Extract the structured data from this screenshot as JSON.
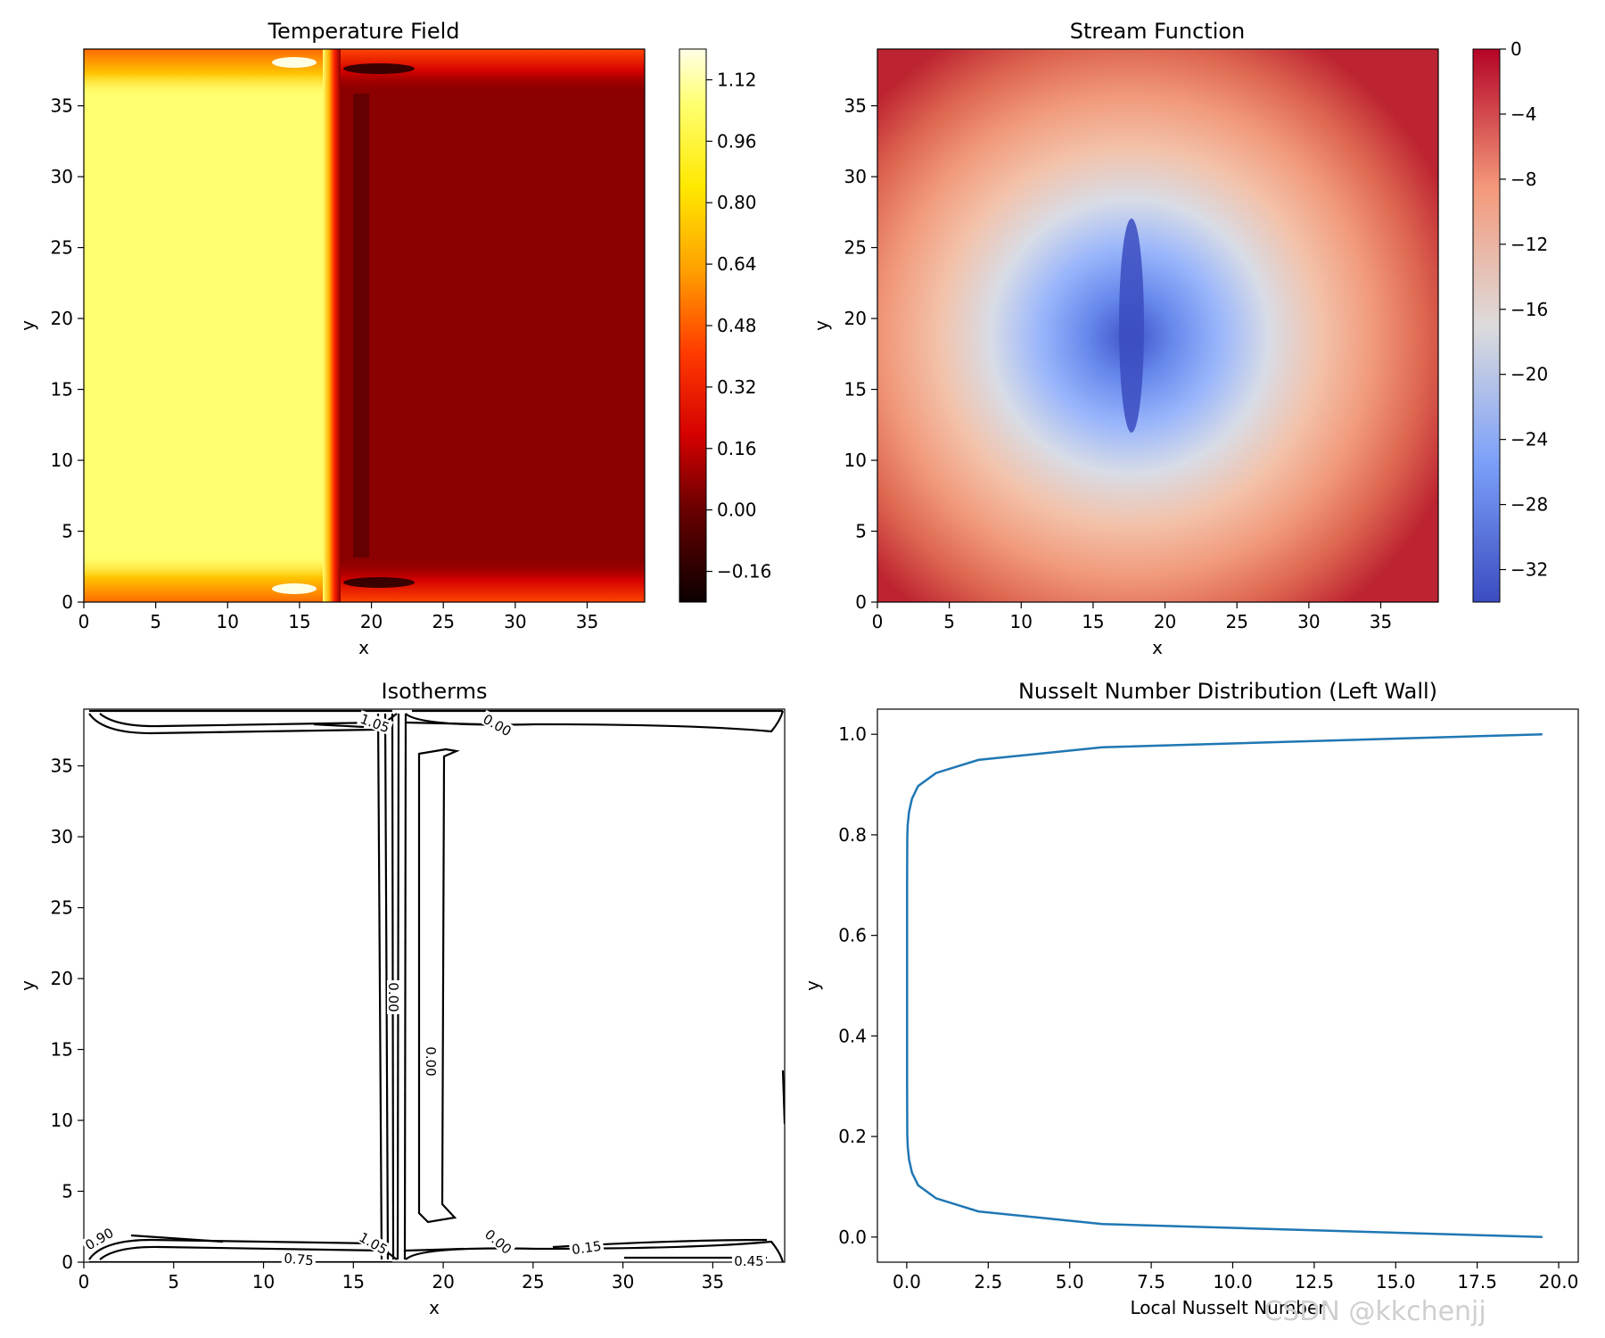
{
  "watermark": "CSDN @kkchenjj",
  "colors": {
    "line": "#1f77b4",
    "axis": "#000000",
    "text": "#000000",
    "watermark": "#cfcfcf"
  },
  "chart_data": [
    {
      "type": "heatmap",
      "title": "Temperature Field",
      "xlabel": "x",
      "ylabel": "y",
      "xlim": [
        0,
        39
      ],
      "ylim": [
        0,
        39
      ],
      "xticks": [
        "0",
        "5",
        "10",
        "15",
        "20",
        "25",
        "30",
        "35"
      ],
      "yticks": [
        "0",
        "5",
        "10",
        "15",
        "20",
        "25",
        "30",
        "35"
      ],
      "colormap": "hot",
      "colorbar": {
        "range": [
          -0.24,
          1.2
        ],
        "ticks": [
          "−0.16",
          "0.00",
          "0.16",
          "0.32",
          "0.48",
          "0.64",
          "0.80",
          "0.96",
          "1.12"
        ]
      },
      "regions": {
        "hot_side_x_range": [
          0,
          17
        ],
        "interface_x": 17.5,
        "hot_value": 0.96,
        "cold_value": 0.04,
        "min_value": -0.16,
        "max_value": 1.12
      }
    },
    {
      "type": "heatmap",
      "title": "Stream Function",
      "xlabel": "x",
      "ylabel": "y",
      "xlim": [
        0,
        39
      ],
      "ylim": [
        0,
        39
      ],
      "xticks": [
        "0",
        "5",
        "10",
        "15",
        "20",
        "25",
        "30",
        "35"
      ],
      "yticks": [
        "0",
        "5",
        "10",
        "15",
        "20",
        "25",
        "30",
        "35"
      ],
      "colormap": "coolwarm",
      "colorbar": {
        "range": [
          -34,
          0
        ],
        "ticks": [
          "0",
          "−4",
          "−8",
          "−12",
          "−16",
          "−20",
          "−24",
          "−28",
          "−32"
        ]
      },
      "extremum": {
        "x": 17.5,
        "y": 20,
        "value": -34
      }
    },
    {
      "type": "contour",
      "title": "Isotherms",
      "xlabel": "x",
      "ylabel": "y",
      "xlim": [
        0,
        39
      ],
      "ylim": [
        0,
        39
      ],
      "xticks": [
        "0",
        "5",
        "10",
        "15",
        "20",
        "25",
        "30",
        "35"
      ],
      "yticks": [
        "0",
        "5",
        "10",
        "15",
        "20",
        "25",
        "30",
        "35"
      ],
      "contour_labels": [
        "1.05",
        "0.00",
        "0.90",
        "0.75",
        "1.05",
        "0.00",
        "0.15",
        "0.45",
        "0.00",
        "0.00"
      ]
    },
    {
      "type": "line",
      "title": "Nusselt Number Distribution (Left Wall)",
      "xlabel": "Local Nusselt Number",
      "ylabel": "y",
      "xlim": [
        -0.9,
        20.6
      ],
      "ylim": [
        -0.05,
        1.05
      ],
      "xticks": [
        "0.0",
        "2.5",
        "5.0",
        "7.5",
        "10.0",
        "12.5",
        "15.0",
        "17.5",
        "20.0"
      ],
      "yticks": [
        "0.0",
        "0.2",
        "0.4",
        "0.6",
        "0.8",
        "1.0"
      ],
      "series": [
        {
          "x": [
            19.5,
            6.0,
            2.2,
            0.9,
            0.35,
            0.16,
            0.07,
            0.03,
            0.015,
            0.01,
            0.01,
            0.01,
            0.015,
            0.03,
            0.07,
            0.16,
            0.35,
            0.9,
            2.2,
            6.0,
            19.5
          ],
          "y": [
            0.0,
            0.026,
            0.051,
            0.077,
            0.103,
            0.128,
            0.154,
            0.18,
            0.205,
            0.3,
            0.5,
            0.7,
            0.795,
            0.82,
            0.846,
            0.872,
            0.897,
            0.923,
            0.949,
            0.974,
            1.0
          ]
        }
      ]
    }
  ]
}
